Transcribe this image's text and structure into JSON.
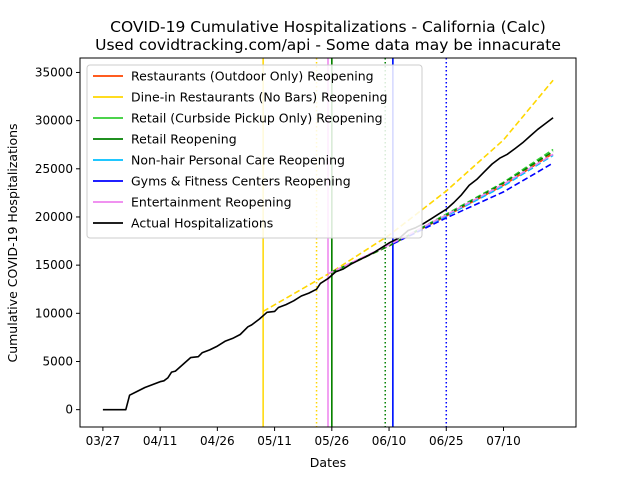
{
  "chart_data": {
    "type": "line",
    "title": "COVID-19 Cumulative Hospitalizations - California (Calc)",
    "subtitle": "Used covidtracking.com/api - Some data may be innacurate",
    "xlabel": "Dates",
    "ylabel": "Cumulative COVID-19 Hospitalizations",
    "xlim": [
      "2020-03-21",
      "2020-07-29"
    ],
    "ylim": [
      -1800,
      36500
    ],
    "x_ticks": [
      {
        "date": "2020-03-27",
        "label": "03/27"
      },
      {
        "date": "2020-04-11",
        "label": "04/11"
      },
      {
        "date": "2020-04-26",
        "label": "04/26"
      },
      {
        "date": "2020-05-11",
        "label": "05/11"
      },
      {
        "date": "2020-05-26",
        "label": "05/26"
      },
      {
        "date": "2020-06-10",
        "label": "06/10"
      },
      {
        "date": "2020-06-25",
        "label": "06/25"
      },
      {
        "date": "2020-07-10",
        "label": "07/10"
      }
    ],
    "y_ticks": [
      {
        "value": 0,
        "label": "0"
      },
      {
        "value": 5000,
        "label": "5000"
      },
      {
        "value": 10000,
        "label": "10000"
      },
      {
        "value": 15000,
        "label": "15000"
      },
      {
        "value": 20000,
        "label": "20000"
      },
      {
        "value": 25000,
        "label": "25000"
      },
      {
        "value": 30000,
        "label": "30000"
      },
      {
        "value": 35000,
        "label": "35000"
      }
    ],
    "grid": false,
    "legend_position": "upper-left",
    "series": [
      {
        "name": "Restaurants (Outdoor Only) Reopening",
        "color": "#ff4500",
        "style": "solid",
        "reopen_date": "2020-05-26",
        "projection": [
          [
            "2020-05-26",
            14200
          ],
          [
            "2020-06-10",
            17000
          ],
          [
            "2020-06-25",
            20100
          ],
          [
            "2020-07-10",
            23300
          ],
          [
            "2020-07-23",
            26600
          ]
        ]
      },
      {
        "name": "Dine-in Restaurants (No Bars) Reopening",
        "color": "#ffd700",
        "style": "solid",
        "reopen_date": "2020-05-08",
        "reduction_date": "2020-05-22",
        "limit_date": "2020-06-09",
        "projection": [
          [
            "2020-05-08",
            10200
          ],
          [
            "2020-05-26",
            14300
          ],
          [
            "2020-06-10",
            18100
          ],
          [
            "2020-06-25",
            22700
          ],
          [
            "2020-07-10",
            28000
          ],
          [
            "2020-07-23",
            34200
          ]
        ]
      },
      {
        "name": "Retail (Curbside Pickup Only) Reopening",
        "color": "#32cd32",
        "style": "solid",
        "reopen_date": "2020-05-26",
        "limit_date": "2020-06-09",
        "projection": [
          [
            "2020-05-26",
            14200
          ],
          [
            "2020-06-10",
            17000
          ],
          [
            "2020-06-25",
            20300
          ],
          [
            "2020-07-10",
            23600
          ],
          [
            "2020-07-23",
            27000
          ]
        ]
      },
      {
        "name": "Retail Reopening",
        "color": "#008000",
        "style": "solid",
        "reopen_date": "2020-05-26",
        "reduction_date": "2020-06-09",
        "projection": [
          [
            "2020-05-26",
            14300
          ],
          [
            "2020-06-10",
            17000
          ],
          [
            "2020-06-25",
            20200
          ],
          [
            "2020-07-10",
            23500
          ],
          [
            "2020-07-23",
            26800
          ]
        ]
      },
      {
        "name": "Non-hair Personal Care Reopening",
        "color": "#00bfff",
        "style": "solid",
        "reopen_date": "2020-06-11",
        "projection": [
          [
            "2020-06-11",
            17300
          ],
          [
            "2020-06-25",
            20100
          ],
          [
            "2020-07-10",
            23200
          ],
          [
            "2020-07-23",
            26400
          ]
        ]
      },
      {
        "name": "Gyms & Fitness Centers Reopening",
        "color": "#0000ff",
        "style": "solid",
        "reopen_date": "2020-06-11",
        "reduction_date": "2020-06-25",
        "projection": [
          [
            "2020-06-11",
            17200
          ],
          [
            "2020-06-25",
            19900
          ],
          [
            "2020-07-10",
            22600
          ],
          [
            "2020-07-23",
            25600
          ]
        ]
      },
      {
        "name": "Entertainment Reopening",
        "color": "#ee82ee",
        "style": "solid",
        "reopen_date": "2020-05-25",
        "projection": [
          [
            "2020-05-25",
            14100
          ],
          [
            "2020-06-10",
            17100
          ],
          [
            "2020-06-25",
            20200
          ],
          [
            "2020-07-10",
            23400
          ],
          [
            "2020-07-23",
            26500
          ]
        ]
      },
      {
        "name": "Actual Hospitalizations",
        "color": "#000000",
        "style": "solid",
        "points": [
          [
            "2020-03-27",
            0
          ],
          [
            "2020-03-28",
            0
          ],
          [
            "2020-03-29",
            0
          ],
          [
            "2020-03-30",
            0
          ],
          [
            "2020-03-31",
            0
          ],
          [
            "2020-04-01",
            0
          ],
          [
            "2020-04-02",
            0
          ],
          [
            "2020-04-03",
            1500
          ],
          [
            "2020-04-05",
            1900
          ],
          [
            "2020-04-07",
            2300
          ],
          [
            "2020-04-09",
            2600
          ],
          [
            "2020-04-11",
            2900
          ],
          [
            "2020-04-12",
            3000
          ],
          [
            "2020-04-13",
            3300
          ],
          [
            "2020-04-14",
            3900
          ],
          [
            "2020-04-15",
            4000
          ],
          [
            "2020-04-17",
            4700
          ],
          [
            "2020-04-19",
            5400
          ],
          [
            "2020-04-21",
            5500
          ],
          [
            "2020-04-22",
            5900
          ],
          [
            "2020-04-24",
            6200
          ],
          [
            "2020-04-26",
            6600
          ],
          [
            "2020-04-28",
            7100
          ],
          [
            "2020-04-30",
            7400
          ],
          [
            "2020-05-02",
            7800
          ],
          [
            "2020-05-04",
            8600
          ],
          [
            "2020-05-05",
            8800
          ],
          [
            "2020-05-07",
            9400
          ],
          [
            "2020-05-09",
            10100
          ],
          [
            "2020-05-11",
            10200
          ],
          [
            "2020-05-12",
            10600
          ],
          [
            "2020-05-14",
            10900
          ],
          [
            "2020-05-16",
            11300
          ],
          [
            "2020-05-18",
            11800
          ],
          [
            "2020-05-20",
            12100
          ],
          [
            "2020-05-22",
            12500
          ],
          [
            "2020-05-23",
            13100
          ],
          [
            "2020-05-25",
            13600
          ],
          [
            "2020-05-27",
            14300
          ],
          [
            "2020-05-29",
            14600
          ],
          [
            "2020-05-31",
            15100
          ],
          [
            "2020-06-02",
            15500
          ],
          [
            "2020-06-04",
            15900
          ],
          [
            "2020-06-06",
            16300
          ],
          [
            "2020-06-08",
            16800
          ],
          [
            "2020-06-10",
            17300
          ],
          [
            "2020-06-13",
            17900
          ],
          [
            "2020-06-15",
            18600
          ],
          [
            "2020-06-17",
            18900
          ],
          [
            "2020-06-19",
            19300
          ],
          [
            "2020-06-21",
            19800
          ],
          [
            "2020-06-23",
            20300
          ],
          [
            "2020-06-25",
            20800
          ],
          [
            "2020-06-27",
            21500
          ],
          [
            "2020-06-29",
            22300
          ],
          [
            "2020-07-01",
            23300
          ],
          [
            "2020-07-03",
            23900
          ],
          [
            "2020-07-05",
            24700
          ],
          [
            "2020-07-07",
            25500
          ],
          [
            "2020-07-09",
            26100
          ],
          [
            "2020-07-11",
            26500
          ],
          [
            "2020-07-13",
            27100
          ],
          [
            "2020-07-15",
            27700
          ],
          [
            "2020-07-17",
            28400
          ],
          [
            "2020-07-19",
            29100
          ],
          [
            "2020-07-21",
            29700
          ],
          [
            "2020-07-23",
            30300
          ]
        ]
      }
    ]
  }
}
